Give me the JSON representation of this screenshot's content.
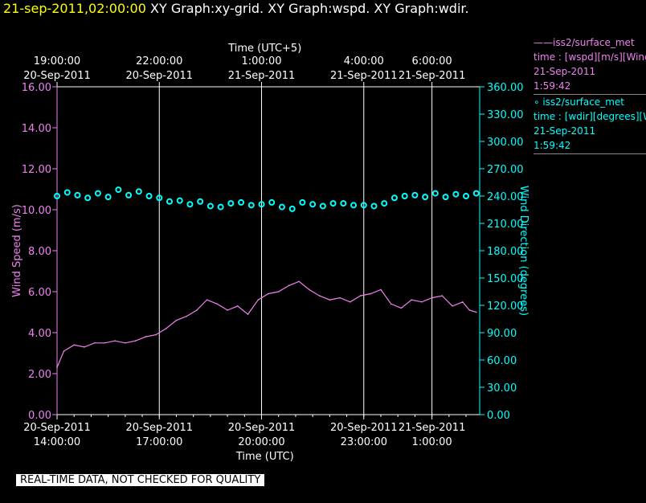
{
  "header": {
    "date": "21-sep-2011,02:00:00",
    "titles": "XY Graph:xy-grid.  XY Graph:wspd.  XY Graph:wdir."
  },
  "legend": [
    {
      "line1": "——iss2/surface_met",
      "line2": "time : [wspd][m/s][Wind",
      "line3": "21-Sep-2011",
      "line4": "1:59:42"
    },
    {
      "line1": "∘  iss2/surface_met",
      "line2": "time : [wdir][degrees][W",
      "line3": "21-Sep-2011",
      "line4": "1:59:42"
    }
  ],
  "quality_label": "REAL-TIME DATA, NOT CHECKED FOR QUALITY",
  "colors": {
    "wspd": "#ee82ee",
    "wdir": "#00ffff",
    "grid": "#ffffff",
    "background": "#000000",
    "header_date": "#ffff00"
  },
  "chart_data": {
    "type": "line",
    "x_axis_bottom": {
      "label": "Time (UTC)",
      "range_hours_utc": [
        14.0,
        26.4
      ],
      "ticks": [
        {
          "value": 14,
          "date": "20-Sep-2011",
          "time": "14:00:00"
        },
        {
          "value": 17,
          "date": "20-Sep-2011",
          "time": "17:00:00"
        },
        {
          "value": 20,
          "date": "20-Sep-2011",
          "time": "20:00:00"
        },
        {
          "value": 23,
          "date": "20-Sep-2011",
          "time": "23:00:00"
        },
        {
          "value": 25,
          "date": "21-Sep-2011",
          "time": "1:00:00"
        }
      ]
    },
    "x_axis_top": {
      "label": "Time (UTC+5)",
      "ticks": [
        {
          "value": 14,
          "time": "19:00:00",
          "date": "20-Sep-2011"
        },
        {
          "value": 17,
          "time": "22:00:00",
          "date": "20-Sep-2011"
        },
        {
          "value": 20,
          "time": "1:00:00",
          "date": "21-Sep-2011"
        },
        {
          "value": 23,
          "time": "4:00:00",
          "date": "21-Sep-2011"
        },
        {
          "value": 25,
          "time": "6:00:00",
          "date": "21-Sep-2011"
        }
      ]
    },
    "y_axis_left": {
      "label": "Wind Speed (m/s)",
      "range": [
        0,
        16
      ],
      "ticks": [
        "0.00",
        "2.00",
        "4.00",
        "6.00",
        "8.00",
        "10.00",
        "12.00",
        "14.00",
        "16.00"
      ]
    },
    "y_axis_right": {
      "label": "Wind Direction (degrees)",
      "range": [
        0,
        360
      ],
      "ticks": [
        "0.00",
        "30.00",
        "60.00",
        "90.00",
        "120.00",
        "150.00",
        "180.00",
        "210.00",
        "240.00",
        "270.00",
        "300.00",
        "330.00",
        "360.00"
      ]
    },
    "series": [
      {
        "name": "iss2/surface_met wspd",
        "axis": "left",
        "style": "line",
        "x": [
          14.0,
          14.2,
          14.5,
          14.8,
          15.1,
          15.4,
          15.7,
          16.0,
          16.3,
          16.6,
          16.9,
          17.2,
          17.5,
          17.8,
          18.1,
          18.4,
          18.7,
          19.0,
          19.3,
          19.6,
          19.9,
          20.2,
          20.5,
          20.8,
          21.1,
          21.4,
          21.7,
          22.0,
          22.3,
          22.6,
          22.9,
          23.2,
          23.5,
          23.8,
          24.1,
          24.4,
          24.7,
          25.0,
          25.3,
          25.6,
          25.9,
          26.1,
          26.3
        ],
        "y": [
          2.3,
          3.1,
          3.4,
          3.3,
          3.5,
          3.5,
          3.6,
          3.5,
          3.6,
          3.8,
          3.9,
          4.2,
          4.6,
          4.8,
          5.1,
          5.6,
          5.4,
          5.1,
          5.3,
          4.9,
          5.6,
          5.9,
          6.0,
          6.3,
          6.5,
          6.1,
          5.8,
          5.6,
          5.7,
          5.5,
          5.8,
          5.9,
          6.1,
          5.4,
          5.2,
          5.6,
          5.5,
          5.7,
          5.8,
          5.3,
          5.5,
          5.1,
          5.0
        ]
      },
      {
        "name": "iss2/surface_met wdir",
        "axis": "right",
        "style": "points",
        "x": [
          14.0,
          14.3,
          14.6,
          14.9,
          15.2,
          15.5,
          15.8,
          16.1,
          16.4,
          16.7,
          17.0,
          17.3,
          17.6,
          17.9,
          18.2,
          18.5,
          18.8,
          19.1,
          19.4,
          19.7,
          20.0,
          20.3,
          20.6,
          20.9,
          21.2,
          21.5,
          21.8,
          22.1,
          22.4,
          22.7,
          23.0,
          23.3,
          23.6,
          23.9,
          24.2,
          24.5,
          24.8,
          25.1,
          25.4,
          25.7,
          26.0,
          26.3
        ],
        "y": [
          240,
          244,
          241,
          238,
          243,
          239,
          247,
          241,
          245,
          240,
          238,
          234,
          235,
          231,
          234,
          229,
          228,
          232,
          233,
          230,
          231,
          233,
          228,
          226,
          233,
          231,
          229,
          232,
          232,
          230,
          230,
          229,
          232,
          238,
          240,
          241,
          239,
          243,
          239,
          242,
          240,
          243
        ]
      }
    ],
    "grid": true,
    "legend_position": "right"
  }
}
